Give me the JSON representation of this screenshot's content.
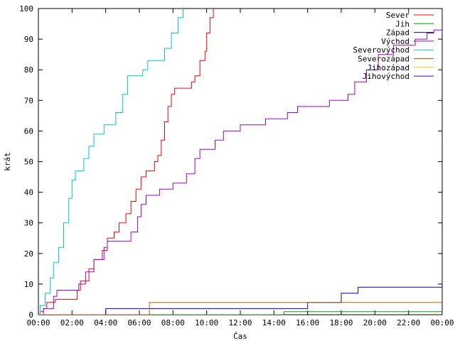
{
  "chart_data": {
    "type": "line",
    "title": "",
    "xlabel": "Čas",
    "ylabel": "krát",
    "xlim": [
      0,
      24
    ],
    "ylim": [
      0,
      100
    ],
    "x_ticks": [
      {
        "v": 0,
        "label": "00:00"
      },
      {
        "v": 2,
        "label": "02:00"
      },
      {
        "v": 4,
        "label": "04:00"
      },
      {
        "v": 6,
        "label": "06:00"
      },
      {
        "v": 8,
        "label": "08:00"
      },
      {
        "v": 10,
        "label": "10:00"
      },
      {
        "v": 12,
        "label": "12:00"
      },
      {
        "v": 14,
        "label": "14:00"
      },
      {
        "v": 16,
        "label": "16:00"
      },
      {
        "v": 18,
        "label": "18:00"
      },
      {
        "v": 20,
        "label": "20:00"
      },
      {
        "v": 22,
        "label": "22:00"
      },
      {
        "v": 24,
        "label": "00:00"
      }
    ],
    "y_ticks": [
      0,
      10,
      20,
      30,
      40,
      50,
      60,
      70,
      80,
      90,
      100
    ],
    "grid": false,
    "legend_position": "top-right",
    "series": [
      {
        "name": "Sever",
        "color": "#ff0000",
        "points": [
          [
            0.3,
            0
          ],
          [
            0.3,
            2
          ],
          [
            0.5,
            2
          ],
          [
            0.5,
            4
          ],
          [
            1.0,
            4
          ],
          [
            1.0,
            5
          ],
          [
            2.3,
            5
          ],
          [
            2.3,
            8
          ],
          [
            2.5,
            8
          ],
          [
            2.5,
            11
          ],
          [
            3.0,
            11
          ],
          [
            3.0,
            15
          ],
          [
            3.3,
            15
          ],
          [
            3.3,
            18
          ],
          [
            3.8,
            18
          ],
          [
            3.8,
            21
          ],
          [
            4.1,
            21
          ],
          [
            4.1,
            25
          ],
          [
            4.5,
            25
          ],
          [
            4.5,
            27
          ],
          [
            4.8,
            27
          ],
          [
            4.8,
            30
          ],
          [
            5.2,
            30
          ],
          [
            5.2,
            33
          ],
          [
            5.5,
            33
          ],
          [
            5.5,
            37
          ],
          [
            5.8,
            37
          ],
          [
            5.8,
            41
          ],
          [
            6.1,
            41
          ],
          [
            6.1,
            45
          ],
          [
            6.4,
            45
          ],
          [
            6.4,
            47
          ],
          [
            6.9,
            47
          ],
          [
            6.9,
            50
          ],
          [
            7.1,
            50
          ],
          [
            7.1,
            52
          ],
          [
            7.3,
            52
          ],
          [
            7.3,
            57
          ],
          [
            7.5,
            57
          ],
          [
            7.5,
            63
          ],
          [
            7.7,
            63
          ],
          [
            7.7,
            68
          ],
          [
            7.9,
            68
          ],
          [
            7.9,
            72
          ],
          [
            8.1,
            72
          ],
          [
            8.1,
            74
          ],
          [
            9.1,
            74
          ],
          [
            9.1,
            76
          ],
          [
            9.3,
            76
          ],
          [
            9.3,
            78
          ],
          [
            9.6,
            78
          ],
          [
            9.6,
            83
          ],
          [
            9.9,
            83
          ],
          [
            9.9,
            86
          ],
          [
            10.0,
            86
          ],
          [
            10.0,
            92
          ],
          [
            10.2,
            92
          ],
          [
            10.2,
            97
          ],
          [
            10.4,
            97
          ],
          [
            10.4,
            100
          ]
        ]
      },
      {
        "name": "Jih",
        "color": "#00a000",
        "points": [
          [
            0,
            0
          ],
          [
            14.6,
            0
          ],
          [
            14.6,
            1
          ],
          [
            24,
            1
          ]
        ]
      },
      {
        "name": "Západ",
        "color": "#0000c0",
        "points": [
          [
            0,
            0
          ],
          [
            4.0,
            0
          ],
          [
            4.0,
            2
          ],
          [
            16.0,
            2
          ],
          [
            16.0,
            4
          ],
          [
            18.0,
            4
          ],
          [
            18.0,
            7
          ],
          [
            19.0,
            7
          ],
          [
            19.0,
            9
          ],
          [
            24,
            9
          ]
        ]
      },
      {
        "name": "Východ",
        "color": "#a000d0",
        "points": [
          [
            0.1,
            0
          ],
          [
            0.1,
            1
          ],
          [
            0.3,
            1
          ],
          [
            0.3,
            2
          ],
          [
            0.9,
            2
          ],
          [
            0.9,
            6
          ],
          [
            1.1,
            6
          ],
          [
            1.1,
            8
          ],
          [
            2.4,
            8
          ],
          [
            2.4,
            10
          ],
          [
            2.8,
            10
          ],
          [
            2.8,
            14
          ],
          [
            3.3,
            14
          ],
          [
            3.3,
            18
          ],
          [
            3.9,
            18
          ],
          [
            3.9,
            22
          ],
          [
            4.1,
            22
          ],
          [
            4.1,
            24
          ],
          [
            5.5,
            24
          ],
          [
            5.5,
            27
          ],
          [
            5.9,
            27
          ],
          [
            5.9,
            32
          ],
          [
            6.1,
            32
          ],
          [
            6.1,
            36
          ],
          [
            6.4,
            36
          ],
          [
            6.4,
            39
          ],
          [
            7.2,
            39
          ],
          [
            7.2,
            41
          ],
          [
            8.0,
            41
          ],
          [
            8.0,
            43
          ],
          [
            8.8,
            43
          ],
          [
            8.8,
            46
          ],
          [
            9.3,
            46
          ],
          [
            9.3,
            51
          ],
          [
            9.6,
            51
          ],
          [
            9.6,
            54
          ],
          [
            10.5,
            54
          ],
          [
            10.5,
            57
          ],
          [
            11.0,
            57
          ],
          [
            11.0,
            60
          ],
          [
            12.0,
            60
          ],
          [
            12.0,
            62
          ],
          [
            13.5,
            62
          ],
          [
            13.5,
            64
          ],
          [
            14.8,
            64
          ],
          [
            14.8,
            66
          ],
          [
            15.4,
            66
          ],
          [
            15.4,
            68
          ],
          [
            17.3,
            68
          ],
          [
            17.3,
            70
          ],
          [
            18.4,
            70
          ],
          [
            18.4,
            72
          ],
          [
            18.8,
            72
          ],
          [
            18.8,
            76
          ],
          [
            19.5,
            76
          ],
          [
            19.5,
            80
          ],
          [
            20.2,
            80
          ],
          [
            20.2,
            85
          ],
          [
            21.1,
            85
          ],
          [
            21.1,
            88
          ],
          [
            22.4,
            88
          ],
          [
            22.4,
            90
          ],
          [
            23.1,
            90
          ],
          [
            23.1,
            92
          ],
          [
            23.5,
            92
          ],
          [
            23.5,
            93
          ],
          [
            24,
            93
          ]
        ]
      },
      {
        "name": "Severovýchod",
        "color": "#00c8c8",
        "points": [
          [
            0.1,
            0
          ],
          [
            0.1,
            3
          ],
          [
            0.4,
            3
          ],
          [
            0.4,
            7
          ],
          [
            0.7,
            7
          ],
          [
            0.7,
            12
          ],
          [
            0.9,
            12
          ],
          [
            0.9,
            17
          ],
          [
            1.2,
            17
          ],
          [
            1.2,
            22
          ],
          [
            1.5,
            22
          ],
          [
            1.5,
            30
          ],
          [
            1.8,
            30
          ],
          [
            1.8,
            38
          ],
          [
            2.0,
            38
          ],
          [
            2.0,
            44
          ],
          [
            2.2,
            44
          ],
          [
            2.2,
            47
          ],
          [
            2.7,
            47
          ],
          [
            2.7,
            51
          ],
          [
            3.0,
            51
          ],
          [
            3.0,
            55
          ],
          [
            3.3,
            55
          ],
          [
            3.3,
            59
          ],
          [
            3.9,
            59
          ],
          [
            3.9,
            62
          ],
          [
            4.6,
            62
          ],
          [
            4.6,
            66
          ],
          [
            5.0,
            66
          ],
          [
            5.0,
            72
          ],
          [
            5.3,
            72
          ],
          [
            5.3,
            78
          ],
          [
            6.2,
            78
          ],
          [
            6.2,
            80
          ],
          [
            6.5,
            80
          ],
          [
            6.5,
            83
          ],
          [
            7.5,
            83
          ],
          [
            7.5,
            87
          ],
          [
            7.9,
            87
          ],
          [
            7.9,
            92
          ],
          [
            8.3,
            92
          ],
          [
            8.3,
            97
          ],
          [
            8.6,
            97
          ],
          [
            8.6,
            100
          ]
        ]
      },
      {
        "name": "Severozápad",
        "color": "#c06000",
        "points": [
          [
            0,
            0
          ],
          [
            6.6,
            0
          ],
          [
            6.6,
            4
          ],
          [
            24,
            4
          ]
        ]
      },
      {
        "name": "Jihozápad",
        "color": "#e8c800",
        "points": []
      },
      {
        "name": "Jihovýchod",
        "color": "#4000a0",
        "points": []
      }
    ]
  }
}
